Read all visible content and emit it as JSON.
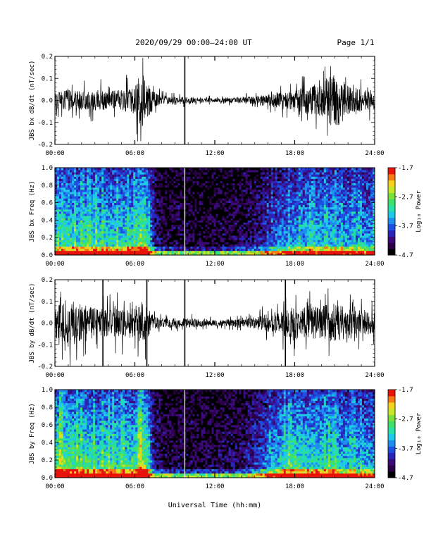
{
  "header": {
    "title": "2020/09/29  00:00–24:00 UT",
    "page": "Page 1/1"
  },
  "x_axis": {
    "label": "Universal Time (hh:mm)",
    "ticks": [
      "00:00",
      "06:00",
      "12:00",
      "18:00",
      "24:00"
    ]
  },
  "colors": {
    "waveform": "#000000",
    "colormap": [
      "#000000",
      "#2a0046",
      "#3b0a7a",
      "#2a24b8",
      "#1f4fe0",
      "#1d8ef0",
      "#1fc8e8",
      "#25e0a8",
      "#3ce06a",
      "#7ae03a",
      "#c8e628",
      "#f5d21c",
      "#f57a14",
      "#e8140c"
    ]
  },
  "chart_data": [
    {
      "type": "line",
      "name": "bx_waveform",
      "ylabel": "JBS bx dB/dt (nT/sec)",
      "xlim": [
        0,
        24
      ],
      "ylim": [
        -0.2,
        0.2
      ],
      "yticks": [
        "-0.2",
        "-0.1",
        "0.0",
        "0.1",
        "0.2"
      ],
      "yticks_values": [
        -0.2,
        -0.1,
        0.0,
        0.1,
        0.2
      ],
      "envelope": {
        "x": [
          0,
          1,
          2,
          3,
          4,
          5,
          6,
          6.5,
          7,
          7.5,
          8,
          9,
          10,
          11,
          12,
          13,
          14,
          15,
          16,
          17,
          18,
          19,
          20,
          21,
          22,
          23,
          24
        ],
        "amplitude": [
          0.05,
          0.07,
          0.06,
          0.07,
          0.06,
          0.07,
          0.09,
          0.18,
          0.11,
          0.05,
          0.03,
          0.025,
          0.02,
          0.015,
          0.015,
          0.015,
          0.02,
          0.03,
          0.04,
          0.05,
          0.07,
          0.09,
          0.12,
          0.19,
          0.1,
          0.07,
          0.06
        ]
      },
      "spikes": [
        {
          "x": 9.75,
          "y": [
            -0.2,
            0.2
          ]
        }
      ]
    },
    {
      "type": "heatmap",
      "name": "bx_spectrogram",
      "ylabel": "JBS bx Freq (Hz)",
      "xlim": [
        0,
        24
      ],
      "ylim": [
        0.0,
        1.0
      ],
      "yticks": [
        "0.0",
        "0.2",
        "0.4",
        "0.6",
        "0.8",
        "1.0"
      ],
      "yticks_values": [
        0.0,
        0.2,
        0.4,
        0.6,
        0.8,
        1.0
      ],
      "colorbar": {
        "label": "Log₁₀ Power",
        "min": -4.7,
        "max": -1.7,
        "ticks": [
          "-4.7",
          "-3.7",
          "-2.7",
          "-1.7"
        ],
        "ticks_values": [
          -4.7,
          -3.7,
          -2.7,
          -1.7
        ]
      },
      "activity": {
        "x": [
          0,
          1,
          2,
          3,
          4,
          5,
          6,
          6.5,
          7,
          7.5,
          8,
          9,
          10,
          11,
          12,
          13,
          14,
          15,
          16,
          17,
          18,
          19,
          20,
          21,
          22,
          23,
          24
        ],
        "level": [
          0.55,
          0.6,
          0.55,
          0.6,
          0.55,
          0.55,
          0.6,
          0.75,
          0.6,
          0.2,
          0.12,
          0.1,
          0.08,
          0.08,
          0.08,
          0.1,
          0.12,
          0.18,
          0.28,
          0.4,
          0.45,
          0.48,
          0.5,
          0.5,
          0.45,
          0.45,
          0.45
        ]
      },
      "white_lines": [
        9.75
      ]
    },
    {
      "type": "line",
      "name": "by_waveform",
      "ylabel": "JBS by dB/dt (nT/sec)",
      "xlim": [
        0,
        24
      ],
      "ylim": [
        -0.2,
        0.2
      ],
      "yticks": [
        "-0.2",
        "-0.1",
        "0.0",
        "0.1",
        "0.2"
      ],
      "yticks_values": [
        -0.2,
        -0.1,
        0.0,
        0.1,
        0.2
      ],
      "envelope": {
        "x": [
          0,
          1,
          2,
          3,
          4,
          5,
          6,
          6.5,
          7,
          7.5,
          8,
          9,
          10,
          11,
          12,
          13,
          14,
          15,
          16,
          17,
          18,
          19,
          20,
          21,
          22,
          23,
          24
        ],
        "amplitude": [
          0.1,
          0.16,
          0.12,
          0.1,
          0.09,
          0.1,
          0.1,
          0.15,
          0.09,
          0.04,
          0.03,
          0.03,
          0.03,
          0.025,
          0.02,
          0.025,
          0.03,
          0.04,
          0.06,
          0.08,
          0.11,
          0.1,
          0.12,
          0.12,
          0.11,
          0.08,
          0.07
        ]
      },
      "spikes": [
        {
          "x": 3.6,
          "y": [
            -0.2,
            0.2
          ]
        },
        {
          "x": 6.9,
          "y": [
            -0.2,
            0.2
          ]
        },
        {
          "x": 9.75,
          "y": [
            -0.2,
            0.2
          ]
        },
        {
          "x": 17.3,
          "y": [
            -0.2,
            0.2
          ]
        }
      ]
    },
    {
      "type": "heatmap",
      "name": "by_spectrogram",
      "ylabel": "JBS by Freq (Hz)",
      "xlim": [
        0,
        24
      ],
      "ylim": [
        0.0,
        1.0
      ],
      "yticks": [
        "0.0",
        "0.2",
        "0.4",
        "0.6",
        "0.8",
        "1.0"
      ],
      "yticks_values": [
        0.0,
        0.2,
        0.4,
        0.6,
        0.8,
        1.0
      ],
      "colorbar": {
        "label": "Log₁₀ Power",
        "min": -4.7,
        "max": -1.7,
        "ticks": [
          "-4.7",
          "-3.7",
          "-2.7",
          "-1.7"
        ],
        "ticks_values": [
          -4.7,
          -3.7,
          -2.7,
          -1.7
        ]
      },
      "activity": {
        "x": [
          0,
          1,
          2,
          3,
          4,
          5,
          6,
          6.5,
          7,
          7.5,
          8,
          9,
          10,
          11,
          12,
          13,
          14,
          15,
          16,
          17,
          18,
          19,
          20,
          21,
          22,
          23,
          24
        ],
        "level": [
          0.7,
          0.68,
          0.62,
          0.6,
          0.6,
          0.58,
          0.62,
          0.8,
          0.65,
          0.15,
          0.12,
          0.1,
          0.1,
          0.1,
          0.1,
          0.12,
          0.15,
          0.25,
          0.4,
          0.55,
          0.6,
          0.58,
          0.58,
          0.55,
          0.5,
          0.48,
          0.45
        ]
      },
      "white_lines": [
        9.75
      ]
    }
  ]
}
